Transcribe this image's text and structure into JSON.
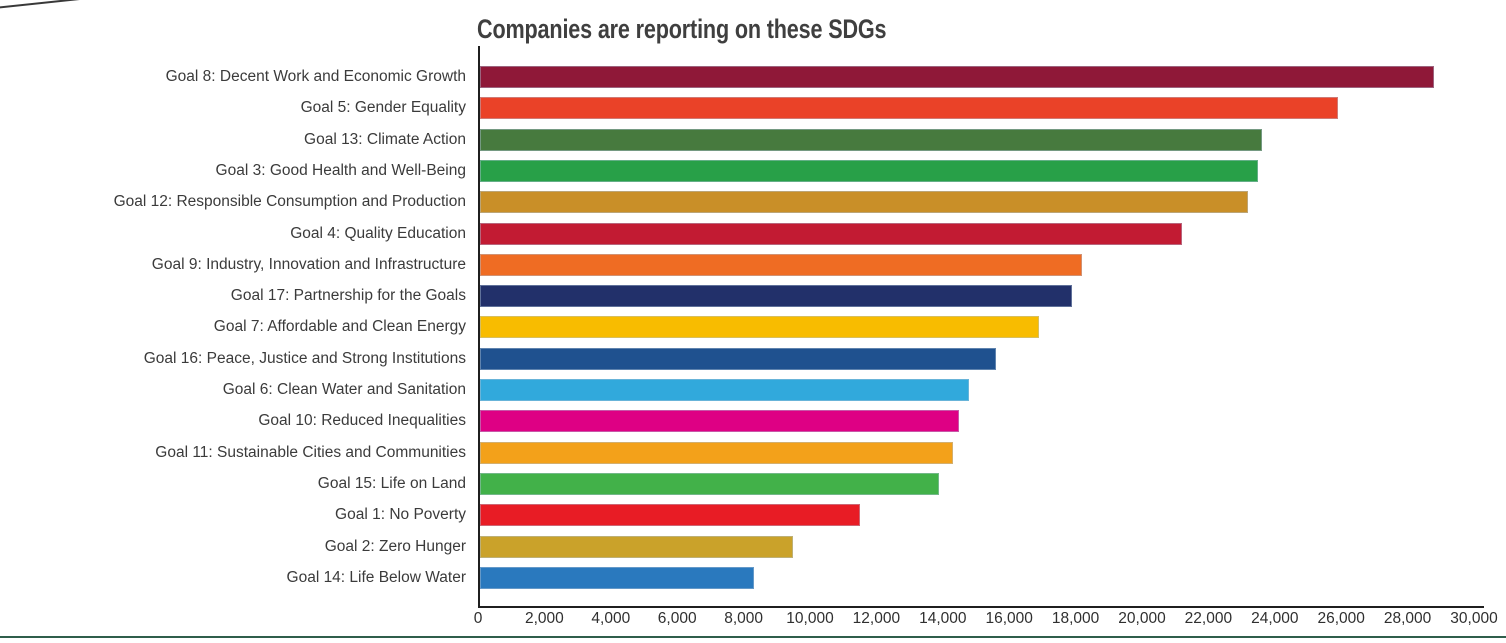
{
  "chart_data": {
    "type": "bar",
    "orientation": "horizontal",
    "title": "Companies are reporting on these SDGs",
    "categories": [
      "Goal 8: Decent Work and Economic Growth",
      "Goal 5: Gender Equality",
      "Goal 13: Climate Action",
      "Goal 3: Good Health and Well-Being",
      "Goal 12: Responsible Consumption and Production",
      "Goal 4: Quality Education",
      "Goal 9: Industry, Innovation and Infrastructure",
      "Goal 17: Partnership for the Goals",
      "Goal 7: Affordable and Clean Energy",
      "Goal 16: Peace, Justice and Strong Institutions",
      "Goal 6: Clean Water and Sanitation",
      "Goal 10: Reduced Inequalities",
      "Goal 11: Sustainable Cities and Communities",
      "Goal 15: Life on Land",
      "Goal 1: No Poverty",
      "Goal 2: Zero Hunger",
      "Goal 14: Life Below Water"
    ],
    "values": [
      28800,
      25900,
      23600,
      23500,
      23200,
      21200,
      18200,
      17900,
      16900,
      15600,
      14800,
      14500,
      14300,
      13900,
      11500,
      9500,
      8300
    ],
    "bar_colors": [
      "#8F1838",
      "#EA4228",
      "#477A3E",
      "#28A048",
      "#C98F28",
      "#C21B33",
      "#EF6C23",
      "#22306A",
      "#F8BC00",
      "#1F518F",
      "#31A9DC",
      "#DE0084",
      "#F3A11A",
      "#42B149",
      "#E81C25",
      "#CAA22A",
      "#2A79BE"
    ],
    "xlabel": "",
    "ylabel": "",
    "xlim": [
      0,
      30000
    ],
    "xtick_step": 2000,
    "xtick_labels": [
      "0",
      "2,000",
      "4,000",
      "6,000",
      "8,000",
      "10,000",
      "12,000",
      "14,000",
      "16,000",
      "18,000",
      "20,000",
      "22,000",
      "24,000",
      "26,000",
      "28,000",
      "30,000"
    ],
    "grid": false,
    "legend": false,
    "sort_order": "descending"
  },
  "styles": {
    "title_color": "#3F3F3F",
    "axis_color": "#1F1F1F",
    "category_label_color": "#3B3B3B",
    "tick_label_color": "#2F2F2F",
    "bottom_rule_color": "#2F5E4B",
    "background_color": "#FFFFFF"
  }
}
